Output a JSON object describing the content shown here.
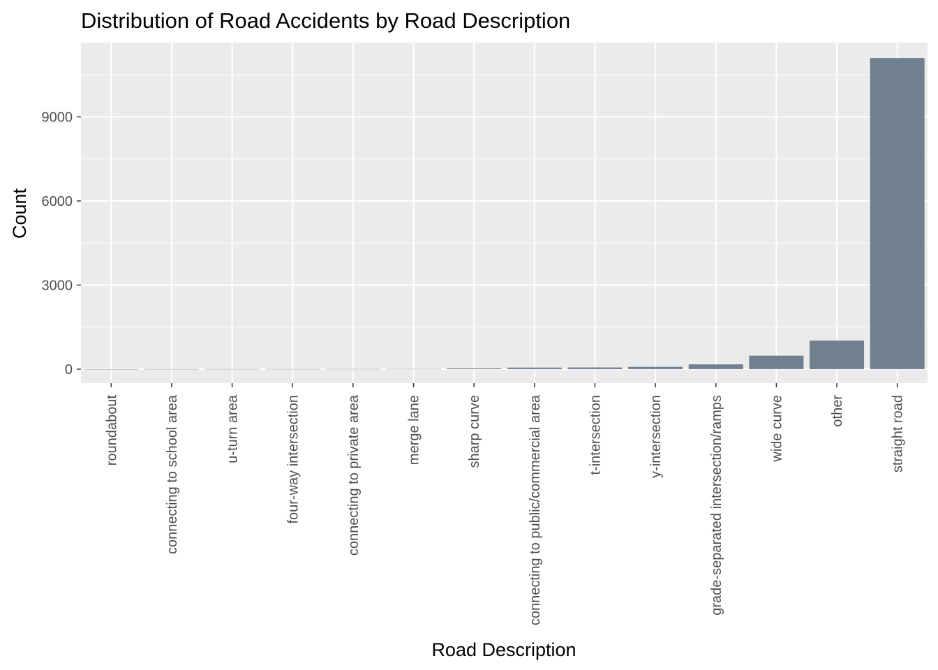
{
  "chart_data": {
    "type": "bar",
    "title": "Distribution of Road Accidents by Road Description",
    "xlabel": "Road Description",
    "ylabel": "Count",
    "categories": [
      "roundabout",
      "connecting to school area",
      "u-turn area",
      "four-way intersection",
      "connecting to private area",
      "merge lane",
      "sharp curve",
      "connecting to public/commercial area",
      "t-intersection",
      "y-intersection",
      "grade-separated intersection/ramps",
      "wide curve",
      "other",
      "straight road"
    ],
    "values": [
      1,
      2,
      3,
      4,
      5,
      6,
      30,
      55,
      60,
      80,
      170,
      480,
      1020,
      11100
    ],
    "ylim": [
      -500,
      11650
    ],
    "yticks": [
      0,
      3000,
      6000,
      9000
    ],
    "grid": true,
    "bar_color": "#708090",
    "panel_background": "#ebebeb",
    "grid_color": "#ffffff"
  }
}
